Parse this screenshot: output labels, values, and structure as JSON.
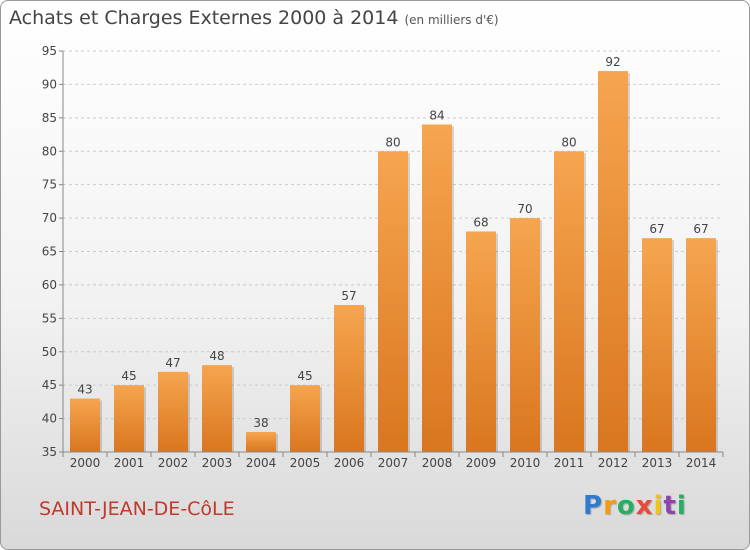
{
  "header": {
    "title": "Achats et Charges Externes 2000 à 2014",
    "subtitle": "(en milliers d'€)"
  },
  "footer": {
    "city": "SAINT-JEAN-DE-CôLE",
    "logo_letters": [
      "P",
      "r",
      "o",
      "x",
      "i",
      "t",
      "i"
    ],
    "logo_colors": [
      "#2e7bcf",
      "#f39c12",
      "#27ae60",
      "#e74c3c",
      "#f1c40f",
      "#8e44ad",
      "#27ae60"
    ]
  },
  "colors": {
    "bar_light": "#f6a54f",
    "bar_dark": "#d9761f",
    "axis": "#888888",
    "grid": "#cccccc",
    "text": "#444444"
  },
  "chart_data": {
    "type": "bar",
    "categories": [
      "2000",
      "2001",
      "2002",
      "2003",
      "2004",
      "2005",
      "2006",
      "2007",
      "2008",
      "2009",
      "2010",
      "2011",
      "2012",
      "2013",
      "2014"
    ],
    "values": [
      43,
      45,
      47,
      48,
      38,
      45,
      57,
      80,
      84,
      68,
      70,
      80,
      92,
      67,
      67
    ],
    "ylim": [
      35,
      95
    ],
    "yticks": [
      35,
      40,
      45,
      50,
      55,
      60,
      65,
      70,
      75,
      80,
      85,
      90,
      95
    ],
    "grid": true
  }
}
